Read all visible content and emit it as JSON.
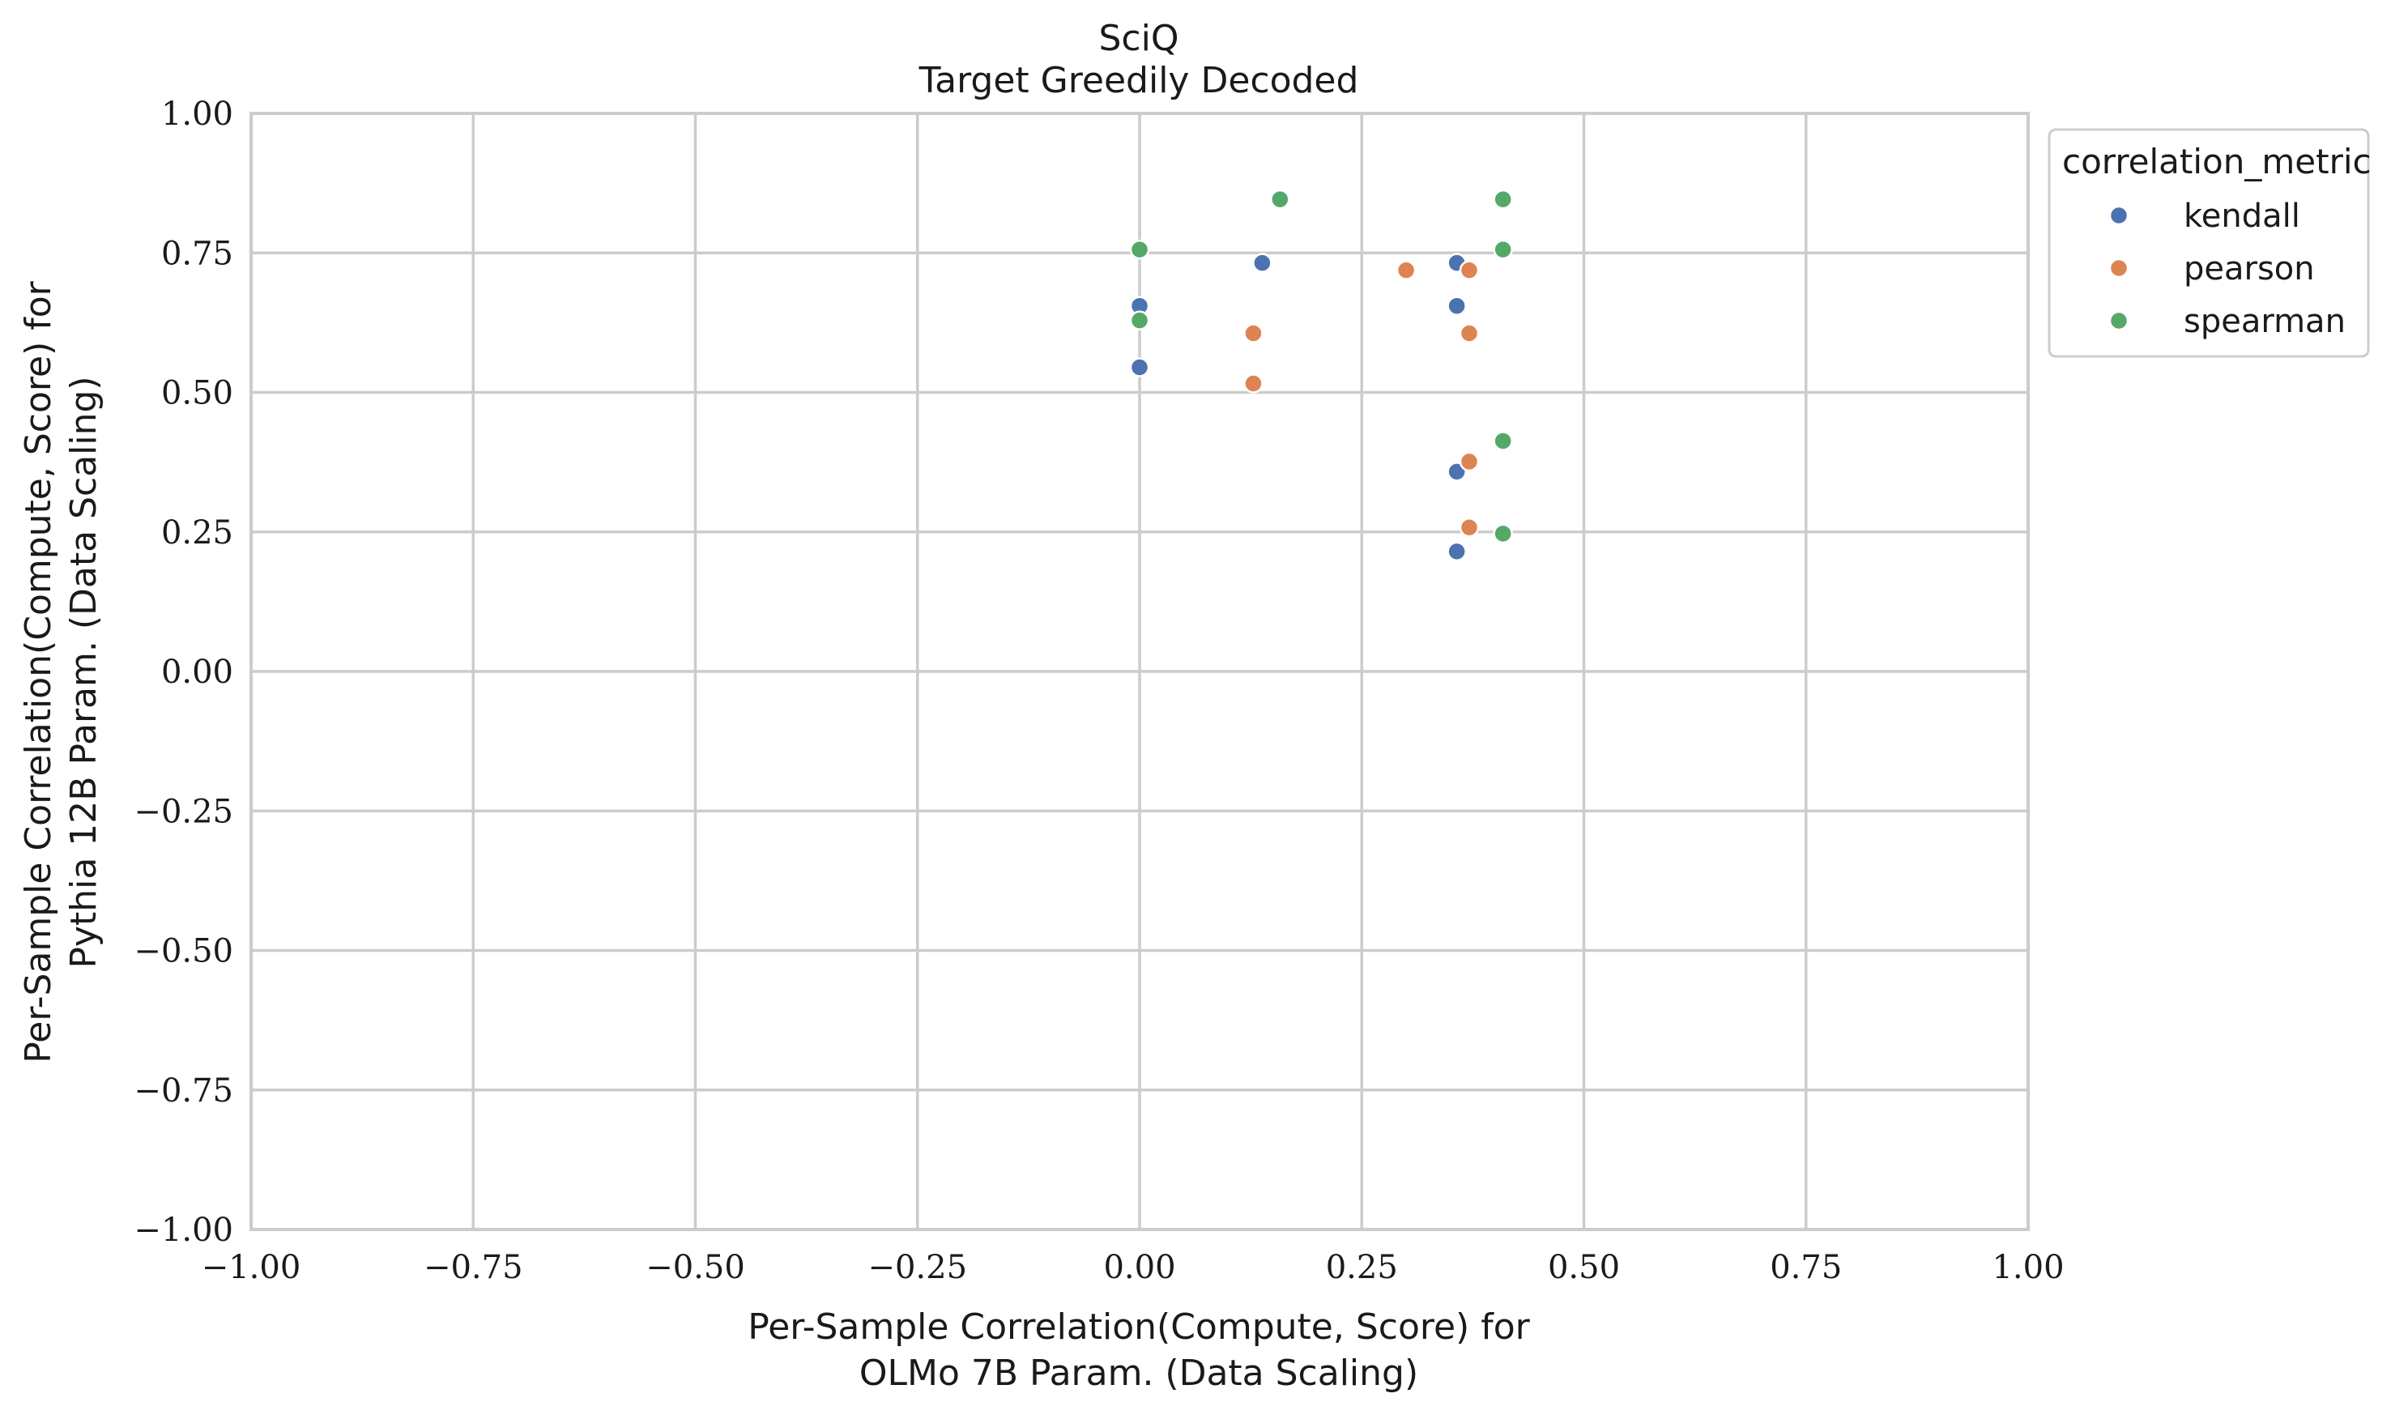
{
  "chart_data": {
    "type": "scatter",
    "title": "SciQ",
    "subtitle": "Target Greedily Decoded",
    "xlabel": [
      "Per-Sample Correlation(Compute, Score) for",
      "OLMo 7B Param. (Data Scaling)"
    ],
    "ylabel": [
      "Per-Sample Correlation(Compute, Score) for",
      "Pythia 12B Param. (Data Scaling)"
    ],
    "xlim": [
      -1.0,
      1.0
    ],
    "ylim": [
      -1.0,
      1.0
    ],
    "xticks": [
      -1.0,
      -0.75,
      -0.5,
      -0.25,
      0.0,
      0.25,
      0.5,
      0.75,
      1.0
    ],
    "yticks": [
      -1.0,
      -0.75,
      -0.5,
      -0.25,
      0.0,
      0.25,
      0.5,
      0.75,
      1.0
    ],
    "xtick_labels": [
      "−1.00",
      "−0.75",
      "−0.50",
      "−0.25",
      "0.00",
      "0.25",
      "0.50",
      "0.75",
      "1.00"
    ],
    "ytick_labels": [
      "−1.00",
      "−0.75",
      "−0.50",
      "−0.25",
      "0.00",
      "0.25",
      "0.50",
      "0.75",
      "1.00"
    ],
    "grid": true,
    "legend": {
      "title": "correlation_metric",
      "placement": "outside-top-right"
    },
    "series": [
      {
        "name": "kendall",
        "color": "#4c72b0",
        "points": [
          [
            0.0,
            0.655
          ],
          [
            0.0,
            0.545
          ],
          [
            0.138,
            0.732
          ],
          [
            0.357,
            0.732
          ],
          [
            0.357,
            0.655
          ],
          [
            0.357,
            0.358
          ],
          [
            0.357,
            0.215
          ]
        ]
      },
      {
        "name": "pearson",
        "color": "#dd8452",
        "points": [
          [
            0.128,
            0.606
          ],
          [
            0.128,
            0.516
          ],
          [
            0.3,
            0.719
          ],
          [
            0.371,
            0.719
          ],
          [
            0.371,
            0.606
          ],
          [
            0.371,
            0.376
          ],
          [
            0.371,
            0.258
          ]
        ]
      },
      {
        "name": "spearman",
        "color": "#55a868",
        "points": [
          [
            0.0,
            0.756
          ],
          [
            0.0,
            0.629
          ],
          [
            0.158,
            0.846
          ],
          [
            0.409,
            0.846
          ],
          [
            0.409,
            0.756
          ],
          [
            0.409,
            0.413
          ],
          [
            0.409,
            0.247
          ]
        ]
      }
    ]
  }
}
